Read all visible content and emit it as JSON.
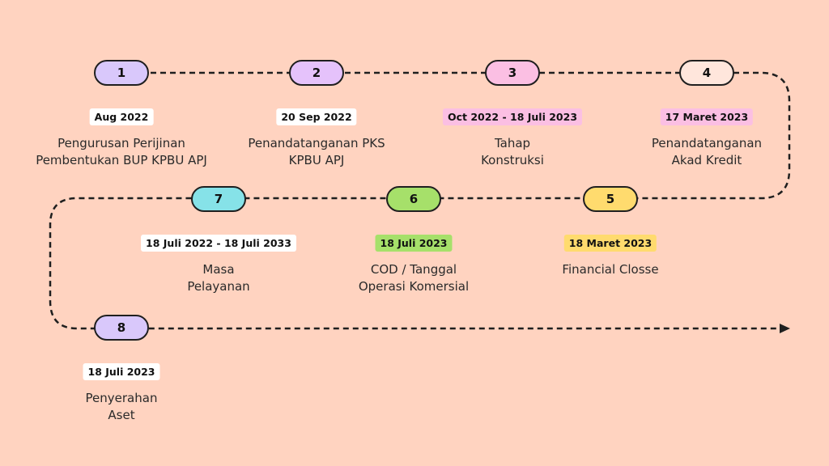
{
  "colors": {
    "background": "#ffd3c0",
    "line": "#1f1f1f"
  },
  "milestones": [
    {
      "number": "1",
      "date": "Aug 2022",
      "lines": [
        "Pengurusan Perijinan",
        "Pembentukan BUP KPBU APJ"
      ],
      "pill_color": "#d9c8fb",
      "date_bg": "#ffffff"
    },
    {
      "number": "2",
      "date": "20 Sep 2022",
      "lines": [
        "Penandatanganan PKS",
        "KPBU APJ"
      ],
      "pill_color": "#e5c2fb",
      "date_bg": "#ffffff"
    },
    {
      "number": "3",
      "date": "Oct 2022 - 18 Juli 2023",
      "lines": [
        "Tahap",
        "Konstruksi"
      ],
      "pill_color": "#fbbfe3",
      "date_bg": "#fbbfe3"
    },
    {
      "number": "4",
      "date": "17 Maret 2023",
      "lines": [
        "Penandatanganan",
        "Akad Kredit"
      ],
      "pill_color": "#ffe6dc",
      "date_bg": "#fbbfe3"
    },
    {
      "number": "5",
      "date": "18 Maret 2023",
      "lines": [
        "Financial Closse"
      ],
      "pill_color": "#ffdb6e",
      "date_bg": "#ffdb6e"
    },
    {
      "number": "6",
      "date": "18 Juli 2023",
      "lines": [
        "COD / Tanggal",
        "Operasi Komersial"
      ],
      "pill_color": "#a6e06a",
      "date_bg": "#a6e06a"
    },
    {
      "number": "7",
      "date": "18 Juli 2022 - 18 Juli 2033",
      "lines": [
        "Masa",
        "Pelayanan"
      ],
      "pill_color": "#86e2e8",
      "date_bg": "#ffffff"
    },
    {
      "number": "8",
      "date": "18 Juli 2023",
      "lines": [
        "Penyerahan",
        "Aset"
      ],
      "pill_color": "#d9c8fb",
      "date_bg": "#ffffff"
    }
  ]
}
